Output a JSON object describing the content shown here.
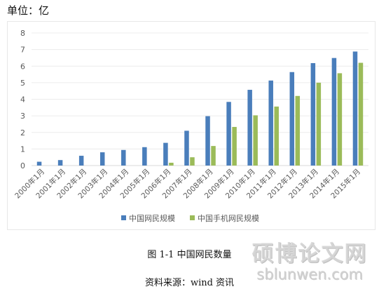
{
  "unit_label": "单位：亿",
  "caption": "图 1-1  中国网民数量",
  "source": "资料来源：wind 资讯",
  "watermark": {
    "title": "硕博论文网",
    "url": "sblunwen.com"
  },
  "colors": {
    "series1": "#4a7ebb",
    "series2": "#9bbb59",
    "grid": "#ececec",
    "tick_text": "#595959",
    "axis": "#d9d9d9"
  },
  "chart_data": {
    "type": "bar",
    "title": "",
    "xlabel": "",
    "ylabel": "",
    "ylim": [
      0,
      8
    ],
    "yticks": [
      0,
      1,
      2,
      3,
      4,
      5,
      6,
      7,
      8
    ],
    "grid": true,
    "legend_position": "bottom",
    "categories": [
      "2000年1月",
      "2001年1月",
      "2002年1月",
      "2003年1月",
      "2004年1月",
      "2005年1月",
      "2006年1月",
      "2007年1月",
      "2008年1月",
      "2009年1月",
      "2010年1月",
      "2011年1月",
      "2012年1月",
      "2013年1月",
      "2014年1月",
      "2015年1月"
    ],
    "series": [
      {
        "name": "中国网民规模",
        "values": [
          0.23,
          0.33,
          0.59,
          0.8,
          0.94,
          1.11,
          1.37,
          2.1,
          2.98,
          3.84,
          4.57,
          5.13,
          5.64,
          6.18,
          6.49,
          6.88
        ]
      },
      {
        "name": "中国手机网民规模",
        "values": [
          null,
          null,
          null,
          null,
          null,
          null,
          0.17,
          0.5,
          1.18,
          2.33,
          3.03,
          3.56,
          4.2,
          5.0,
          5.57,
          6.2
        ]
      }
    ]
  }
}
